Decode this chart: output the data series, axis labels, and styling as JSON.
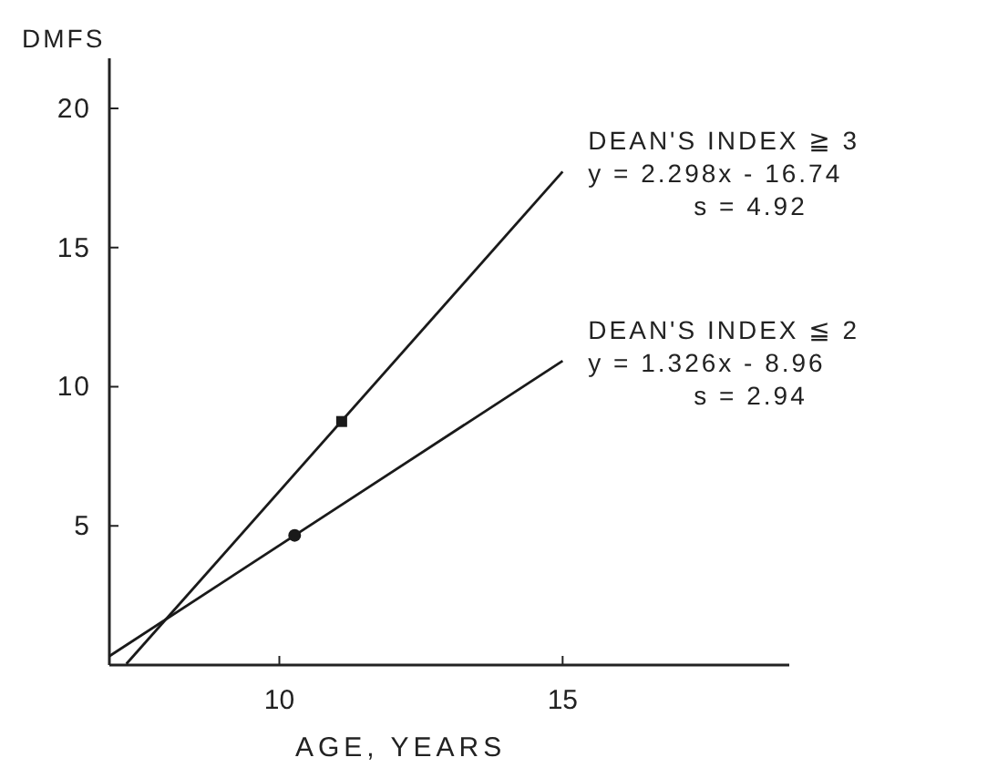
{
  "chart_data": {
    "type": "line",
    "xlabel": "AGE, YEARS",
    "ylabel": "DMFS",
    "xlim": [
      7,
      19
    ],
    "ylim": [
      0,
      21.8
    ],
    "xticks": [
      10,
      15
    ],
    "yticks": [
      5,
      10,
      15,
      20
    ],
    "grid": false,
    "marker": "none",
    "line_style": "solid",
    "series": [
      {
        "name": "DEAN'S INDEX ≧ 3",
        "color": "#1a1a1a",
        "x": [
          7.3,
          15
        ],
        "values": [
          0.04,
          17.73
        ]
      },
      {
        "name": "DEAN'S INDEX ≦ 2",
        "color": "#1a1a1a",
        "x": [
          7,
          15
        ],
        "values": [
          0.32,
          10.93
        ]
      },
      {
        "type": "scatter",
        "marker": "square",
        "color": "#1a1a1a",
        "x": [
          11.1
        ],
        "values": [
          8.75
        ]
      },
      {
        "type": "scatter",
        "marker": "circle",
        "color": "#1a1a1a",
        "x": [
          10.27
        ],
        "values": [
          4.66
        ]
      }
    ],
    "annotations": [
      "y = 2.298x - 16.74\ns = 4.92",
      "y = 1.326x - 8.96\ns = 2.94"
    ]
  }
}
